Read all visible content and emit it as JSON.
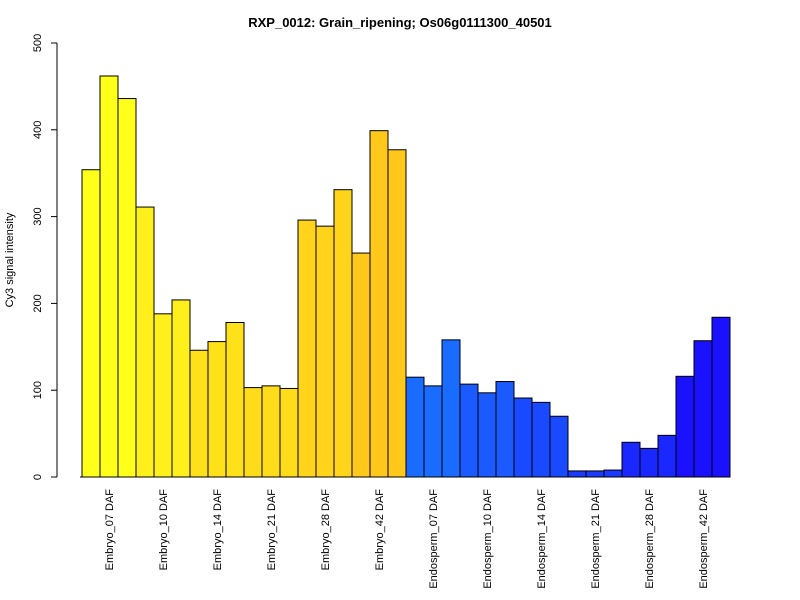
{
  "chart_data": {
    "type": "bar",
    "title": "RXP_0012: Grain_ripening; Os06g0111300_40501",
    "ylabel": "Cy3 signal intensity",
    "xlabel": "",
    "ylim": [
      0,
      500
    ],
    "yticks": [
      0,
      100,
      200,
      300,
      400,
      500
    ],
    "grid": false,
    "legend": "none",
    "categories": [
      "Embryo_07 DAF",
      "Embryo_10 DAF",
      "Embryo_14 DAF",
      "Embryo_21 DAF",
      "Embryo_28 DAF",
      "Embryo_42 DAF",
      "Endosperm_07 DAF",
      "Endosperm_10 DAF",
      "Endosperm_14 DAF",
      "Endosperm_21 DAF",
      "Endosperm_28 DAF",
      "Endosperm_42 DAF"
    ],
    "group_colors": [
      "#ffff1a",
      "#fff01c",
      "#ffe11a",
      "#ffdc1a",
      "#ffd41a",
      "#ffc81a",
      "#1a6bff",
      "#1a5aff",
      "#1a4aff",
      "#1a3aff",
      "#1a28ff",
      "#1a12ff"
    ],
    "replicates": [
      [
        354,
        462,
        436
      ],
      [
        311,
        188,
        204
      ],
      [
        146,
        156,
        178
      ],
      [
        103,
        105,
        102
      ],
      [
        296,
        289,
        331
      ],
      [
        258,
        399,
        377
      ],
      [
        115,
        105,
        158
      ],
      [
        107,
        97,
        110
      ],
      [
        91,
        86,
        70
      ],
      [
        7,
        7,
        8
      ],
      [
        40,
        33,
        48
      ],
      [
        116,
        157,
        184
      ]
    ]
  }
}
